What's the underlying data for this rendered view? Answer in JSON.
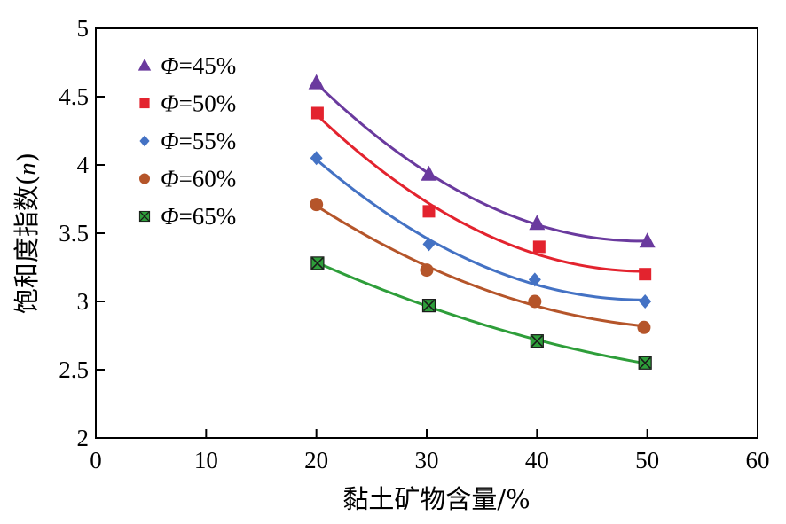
{
  "chart_data": {
    "type": "scatter",
    "xlabel": "黏土矿物含量/%",
    "ylabel_prefix": "饱和度指数(",
    "ylabel_var": "n",
    "ylabel_suffix": ")",
    "xlim": [
      0,
      60
    ],
    "ylim": [
      2,
      5
    ],
    "xticks": [
      0,
      10,
      20,
      30,
      40,
      50,
      60
    ],
    "yticks": [
      2,
      2.5,
      3,
      3.5,
      4,
      4.5,
      5
    ],
    "ytick_labels": [
      "2",
      "2.5",
      "3",
      "3.5",
      "4",
      "4.5",
      "5"
    ],
    "grid": false,
    "legend_position": "top-left",
    "legend_symbol": "Φ",
    "fit_curves": true,
    "series": [
      {
        "name": "=45%",
        "marker": "triangle",
        "color": "#6a3a9e",
        "x": [
          20,
          30.2,
          40,
          50
        ],
        "y": [
          4.6,
          3.93,
          3.57,
          3.44
        ]
      },
      {
        "name": "=50%",
        "marker": "square",
        "color": "#e3232e",
        "x": [
          20.1,
          30.2,
          40.2,
          49.8
        ],
        "y": [
          4.38,
          3.66,
          3.4,
          3.2
        ]
      },
      {
        "name": "=55%",
        "marker": "diamond",
        "color": "#4472c4",
        "x": [
          20,
          30.2,
          39.8,
          49.8
        ],
        "y": [
          4.05,
          3.42,
          3.16,
          3.0
        ]
      },
      {
        "name": "=60%",
        "marker": "circle",
        "color": "#b5552a",
        "x": [
          20,
          30,
          39.8,
          49.7
        ],
        "y": [
          3.71,
          3.23,
          3.0,
          2.81
        ]
      },
      {
        "name": "=65%",
        "marker": "boxcross",
        "color": "#2e9e3a",
        "x": [
          20.1,
          30.2,
          40,
          49.8
        ],
        "y": [
          3.28,
          2.97,
          2.71,
          2.55
        ]
      }
    ]
  }
}
